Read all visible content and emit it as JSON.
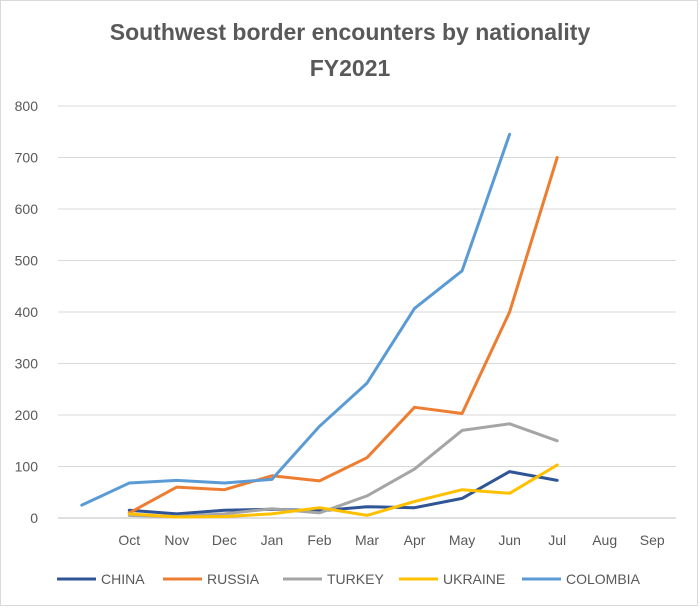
{
  "chart_data": {
    "type": "line",
    "title": "Southwest border encounters by nationality",
    "subtitle": "FY2021",
    "categories": [
      "",
      "Oct",
      "Nov",
      "Dec",
      "Jan",
      "Feb",
      "Mar",
      "Apr",
      "May",
      "Jun",
      "Jul",
      "Aug",
      "Sep"
    ],
    "ylim": [
      0,
      800
    ],
    "yticks": [
      "0",
      "100",
      "200",
      "300",
      "400",
      "500",
      "600",
      "700",
      "800"
    ],
    "grid": true,
    "legend_position": "bottom",
    "series": [
      {
        "name": "CHINA",
        "color": "#2f5597",
        "values": [
          null,
          15,
          8,
          15,
          17,
          14,
          22,
          20,
          38,
          90,
          73,
          null,
          null
        ]
      },
      {
        "name": "RUSSIA",
        "color": "#ed7d31",
        "values": [
          null,
          10,
          60,
          55,
          82,
          72,
          117,
          215,
          203,
          400,
          700,
          null,
          null
        ]
      },
      {
        "name": "TURKEY",
        "color": "#a5a5a5",
        "values": [
          null,
          5,
          3,
          8,
          18,
          10,
          43,
          95,
          170,
          183,
          150,
          null,
          null
        ]
      },
      {
        "name": "UKRAINE",
        "color": "#ffc000",
        "values": [
          null,
          8,
          2,
          3,
          8,
          20,
          5,
          32,
          55,
          48,
          103,
          null,
          null
        ]
      },
      {
        "name": "COLOMBIA",
        "color": "#5b9bd5",
        "values": [
          25,
          68,
          73,
          68,
          75,
          178,
          262,
          407,
          480,
          745,
          null,
          null,
          null
        ]
      }
    ]
  }
}
